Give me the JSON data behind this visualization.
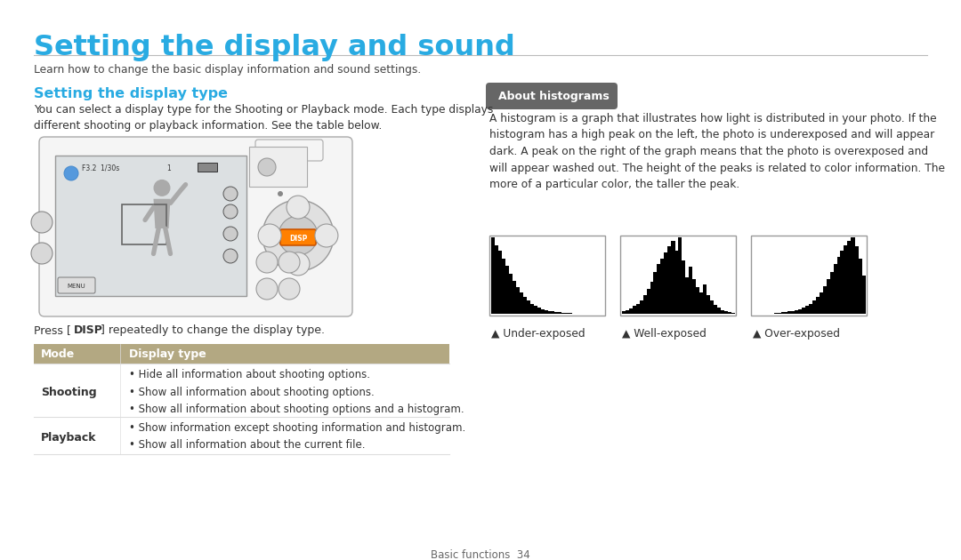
{
  "title": "Setting the display and sound",
  "title_color": "#29ABE2",
  "subtitle": "Learn how to change the basic display information and sound settings.",
  "section1_title": "Setting the display type",
  "section1_color": "#29ABE2",
  "section1_body": "You can select a display type for the Shooting or Playback mode. Each type displays\ndifferent shooting or playback information. See the table below.",
  "about_box_label": "About histograms",
  "about_box_bg": "#666666",
  "about_box_text_color": "#ffffff",
  "about_body": "A histogram is a graph that illustrates how light is distributed in your photo. If the\nhistogram has a high peak on the left, the photo is underexposed and will appear\ndark. A peak on the right of the graph means that the photo is overexposed and\nwill appear washed out. The height of the peaks is related to color information. The\nmore of a particular color, the taller the peak.",
  "hist_labels": [
    "Under-exposed",
    "Well-exposed",
    "Over-exposed"
  ],
  "table_header": [
    "Mode",
    "Display type"
  ],
  "table_header_bg": "#b3a882",
  "table_header_text": "#ffffff",
  "table_rows": [
    [
      "Shooting",
      "• Hide all information about shooting options.\n• Show all information about shooting options.\n• Show all information about shooting options and a histogram."
    ],
    [
      "Playback",
      "• Show information except shooting information and histogram.\n• Show all information about the current file."
    ]
  ],
  "footer": "Basic functions  34",
  "bg_color": "#ffffff",
  "text_color": "#333333",
  "divider_color": "#cccccc",
  "cam_edge": "#aaaaaa",
  "cam_fill": "#f5f5f5",
  "cam_screen_fill": "#e8eaeb",
  "cam_screen_edge": "#888888"
}
